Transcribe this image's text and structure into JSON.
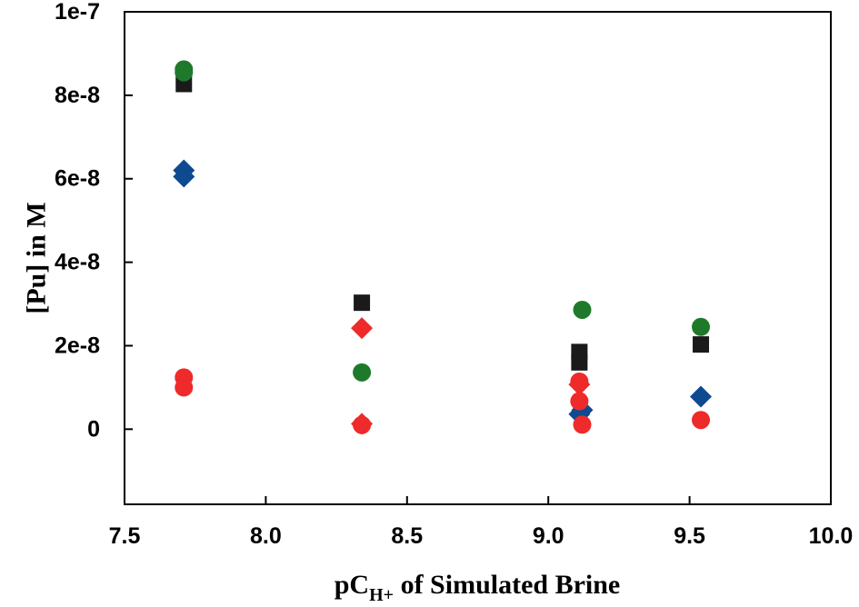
{
  "chart_data": {
    "type": "scatter",
    "title": "",
    "xlabel": {
      "main": "pC",
      "subscript": "H+",
      "rest": " of Simulated Brine"
    },
    "ylabel": "[Pu] in M",
    "xlim": [
      7.5,
      10.0
    ],
    "ylim": [
      -1.8e-08,
      1e-07
    ],
    "grid": false,
    "x_ticks": [
      {
        "value": 7.5,
        "label": "7.5"
      },
      {
        "value": 8.0,
        "label": "8.0"
      },
      {
        "value": 8.5,
        "label": "8.5"
      },
      {
        "value": 9.0,
        "label": "9.0"
      },
      {
        "value": 9.5,
        "label": "9.5"
      },
      {
        "value": 10.0,
        "label": "10.0"
      }
    ],
    "y_ticks": [
      {
        "value": 0,
        "label": "0"
      },
      {
        "value": 2e-08,
        "label": "2e-8"
      },
      {
        "value": 4e-08,
        "label": "4e-8"
      },
      {
        "value": 6e-08,
        "label": "6e-8"
      },
      {
        "value": 8e-08,
        "label": "8e-8"
      },
      {
        "value": 1e-07,
        "label": "1e-7"
      }
    ],
    "series": [
      {
        "marker": "square",
        "color": "#1a1a1a",
        "points": [
          {
            "x": 7.71,
            "y": 8.27e-08
          },
          {
            "x": 8.34,
            "y": 3.03e-08
          },
          {
            "x": 9.11,
            "y": 1.85e-08
          },
          {
            "x": 9.11,
            "y": 1.6e-08
          },
          {
            "x": 9.54,
            "y": 2.03e-08
          }
        ]
      },
      {
        "marker": "circle",
        "color": "#1e7a2a",
        "points": [
          {
            "x": 7.71,
            "y": 8.62e-08
          },
          {
            "x": 7.71,
            "y": 8.55e-08
          },
          {
            "x": 8.34,
            "y": 1.36e-08
          },
          {
            "x": 9.12,
            "y": 2.86e-08
          },
          {
            "x": 9.54,
            "y": 2.45e-08
          }
        ]
      },
      {
        "marker": "diamond",
        "color": "#0d4a90",
        "points": [
          {
            "x": 7.71,
            "y": 6.2e-08
          },
          {
            "x": 7.71,
            "y": 6.05e-08
          },
          {
            "x": 9.11,
            "y": 3.6e-09
          },
          {
            "x": 9.12,
            "y": 4.6e-09
          },
          {
            "x": 9.54,
            "y": 7.8e-09
          }
        ]
      },
      {
        "marker": "circle",
        "color": "#ee2a2a",
        "points": [
          {
            "x": 7.71,
            "y": 1.24e-08
          },
          {
            "x": 7.71,
            "y": 1e-08
          },
          {
            "x": 8.34,
            "y": 1e-09
          },
          {
            "x": 9.11,
            "y": 1.14e-08
          },
          {
            "x": 9.11,
            "y": 6.7e-09
          },
          {
            "x": 9.12,
            "y": 1.1e-09
          },
          {
            "x": 9.54,
            "y": 2.2e-09
          }
        ]
      },
      {
        "marker": "diamond",
        "color": "#ee2a2a",
        "points": [
          {
            "x": 8.34,
            "y": 2.42e-08
          },
          {
            "x": 8.34,
            "y": 1.3e-09
          },
          {
            "x": 9.11,
            "y": 1.07e-08
          }
        ]
      }
    ]
  }
}
